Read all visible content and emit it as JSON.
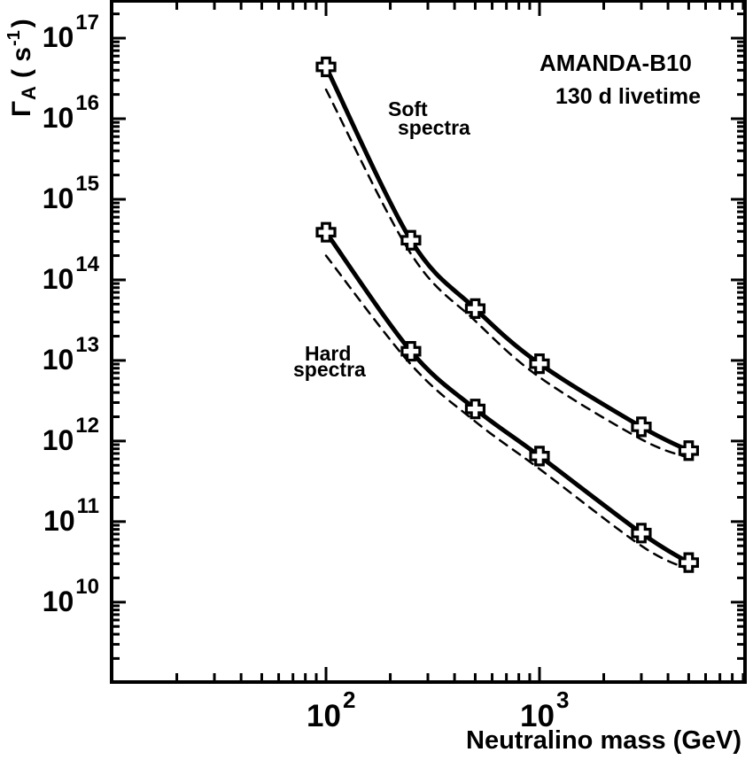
{
  "figure": {
    "background": "#ffffff",
    "foreground": "#000000"
  },
  "annotations": {
    "experiment": "AMANDA-B10",
    "livetime": "130 d livetime",
    "soft_line1": "Soft",
    "soft_line2": "spectra",
    "hard_line1": "Hard",
    "hard_line2": "spectra"
  },
  "axes": {
    "x_title": "Neutralino mass (GeV)",
    "y_title": {
      "gamma": "Γ",
      "sub": "A",
      "open": "( s",
      "sup": "-1",
      "close": ")"
    },
    "x_tick_labels": [
      {
        "base": "10",
        "exp": "2",
        "value": 100
      },
      {
        "base": "10",
        "exp": "3",
        "value": 1000
      }
    ],
    "y_tick_labels": [
      {
        "base": "10",
        "exp": "17",
        "value": 1e+17
      },
      {
        "base": "10",
        "exp": "16",
        "value": 1e+16
      },
      {
        "base": "10",
        "exp": "15",
        "value": 1000000000000000.0
      },
      {
        "base": "10",
        "exp": "14",
        "value": 100000000000000.0
      },
      {
        "base": "10",
        "exp": "13",
        "value": 10000000000000.0
      },
      {
        "base": "10",
        "exp": "12",
        "value": 1000000000000.0
      },
      {
        "base": "10",
        "exp": "11",
        "value": 100000000000.0
      },
      {
        "base": "10",
        "exp": "10",
        "value": 10000000000.0
      }
    ]
  },
  "chart_data": {
    "type": "line",
    "title": "AMANDA-B10, 130 d livetime",
    "xlabel": "Neutralino mass (GeV)",
    "ylabel": "Gamma_A (s^-1)",
    "x_scale": "log",
    "y_scale": "log",
    "xlim": [
      9.9,
      9180
    ],
    "ylim": [
      1020000000.0,
      2.9e+17
    ],
    "grid": false,
    "legend_position": "none",
    "x": [
      100,
      250,
      500,
      1000,
      3000,
      5000
    ],
    "series": [
      {
        "name": "soft-spectra-solid",
        "label": "Soft spectra",
        "style": "solid",
        "marker": "open-cross",
        "values": [
          4.4e+16,
          310000000000000.0,
          44000000000000.0,
          9100000000000.0,
          1500000000000.0,
          760000000000.0
        ]
      },
      {
        "name": "soft-spectra-dashed",
        "label": "Soft spectra (dashed)",
        "style": "dashed",
        "marker": "none",
        "values": [
          2.3e+16,
          210000000000000.0,
          31000000000000.0,
          6200000000000.0,
          1050000000000.0,
          620000000000.0
        ]
      },
      {
        "name": "hard-spectra-solid",
        "label": "Hard spectra",
        "style": "solid",
        "marker": "open-cross",
        "values": [
          390000000000000.0,
          13000000000000.0,
          2500000000000.0,
          650000000000.0,
          72000000000.0,
          31000000000.0
        ]
      },
      {
        "name": "hard-spectra-dashed",
        "label": "Hard spectra (dashed)",
        "style": "dashed",
        "marker": "none",
        "values": [
          200000000000000.0,
          8900000000000.0,
          1750000000000.0,
          450000000000.0,
          50000000000.0,
          25500000000.0
        ]
      }
    ]
  }
}
